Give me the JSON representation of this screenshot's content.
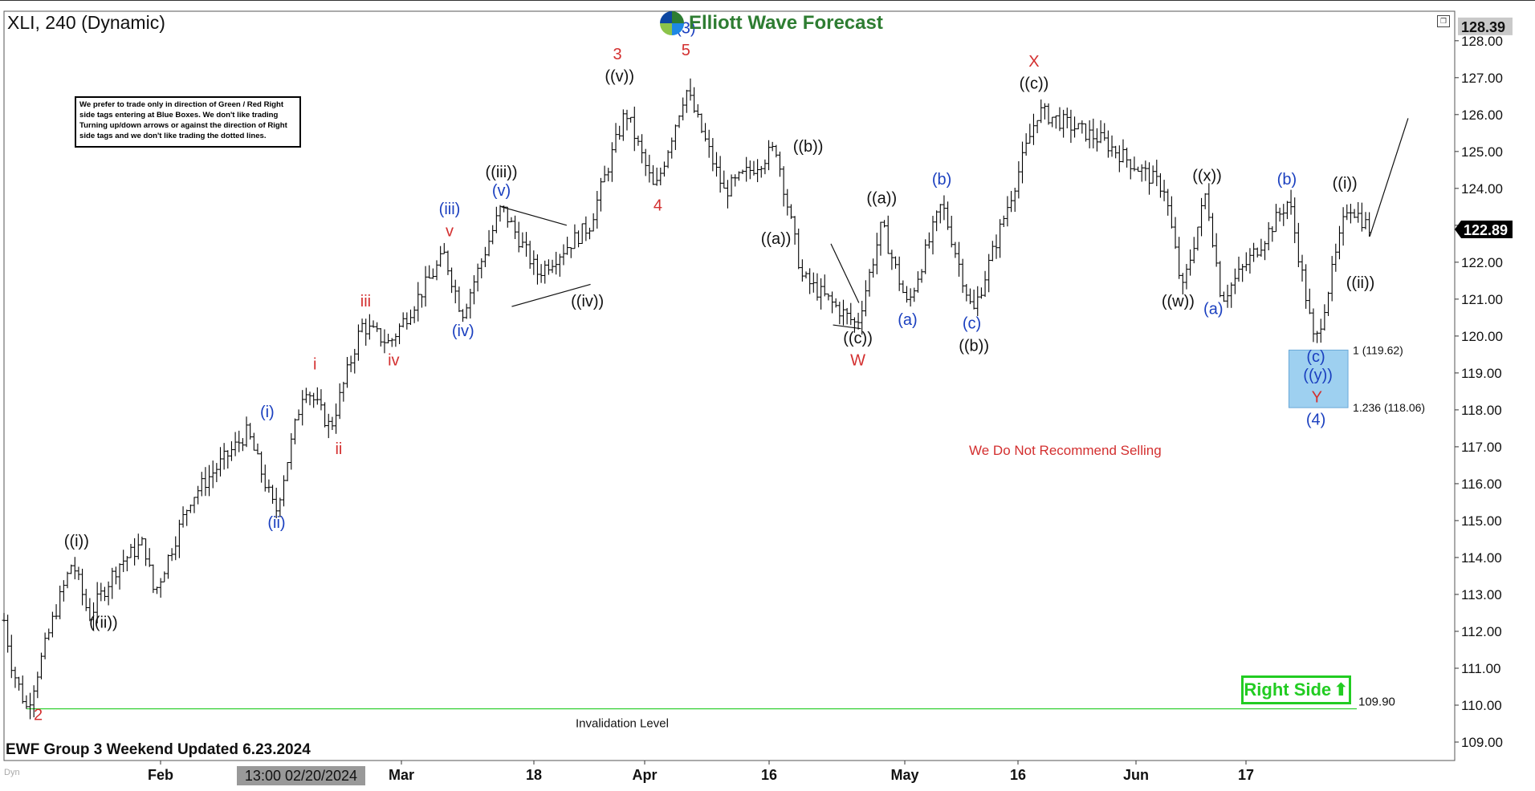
{
  "chart_data": {
    "type": "ohlc",
    "title": "XLI, 240 (Dynamic)",
    "x_axis": {
      "ticks": [
        "Feb",
        "Mar",
        "18",
        "Apr",
        "16",
        "May",
        "16",
        "Jun",
        "17"
      ],
      "cursor_label": "13:00 02/20/2024"
    },
    "y_axis": {
      "range": [
        108.5,
        128.8
      ],
      "ticks": [
        "128.00",
        "127.00",
        "126.00",
        "125.00",
        "124.00",
        "123.00",
        "122.00",
        "121.00",
        "120.00",
        "119.00",
        "118.00",
        "117.00",
        "116.00",
        "115.00",
        "114.00",
        "113.00",
        "112.00",
        "111.00",
        "110.00",
        "109.00"
      ],
      "high_label": "128.39",
      "last_label": "122.89"
    },
    "price_path": [
      {
        "t": 0,
        "p": 112.3
      },
      {
        "t": 8,
        "p": 111.0
      },
      {
        "t": 22,
        "p": 109.9
      },
      {
        "t": 48,
        "p": 112.4
      },
      {
        "t": 66,
        "p": 113.9
      },
      {
        "t": 82,
        "p": 112.4
      },
      {
        "t": 110,
        "p": 113.8
      },
      {
        "t": 135,
        "p": 114.4
      },
      {
        "t": 145,
        "p": 113.0
      },
      {
        "t": 180,
        "p": 115.6
      },
      {
        "t": 235,
        "p": 117.4
      },
      {
        "t": 262,
        "p": 115.2
      },
      {
        "t": 290,
        "p": 118.7
      },
      {
        "t": 315,
        "p": 117.5
      },
      {
        "t": 345,
        "p": 120.3
      },
      {
        "t": 372,
        "p": 119.8
      },
      {
        "t": 425,
        "p": 122.2
      },
      {
        "t": 442,
        "p": 120.6
      },
      {
        "t": 480,
        "p": 123.5
      },
      {
        "t": 515,
        "p": 121.7
      },
      {
        "t": 565,
        "p": 123.0
      },
      {
        "t": 600,
        "p": 126.1
      },
      {
        "t": 628,
        "p": 123.9
      },
      {
        "t": 658,
        "p": 126.7
      },
      {
        "t": 695,
        "p": 123.9
      },
      {
        "t": 745,
        "p": 125.1
      },
      {
        "t": 770,
        "p": 121.6
      },
      {
        "t": 823,
        "p": 120.3
      },
      {
        "t": 847,
        "p": 123.0
      },
      {
        "t": 872,
        "p": 120.8
      },
      {
        "t": 905,
        "p": 123.6
      },
      {
        "t": 935,
        "p": 120.6
      },
      {
        "t": 998,
        "p": 126.1
      },
      {
        "t": 1060,
        "p": 125.3
      },
      {
        "t": 1120,
        "p": 124.0
      },
      {
        "t": 1137,
        "p": 121.2
      },
      {
        "t": 1160,
        "p": 123.9
      },
      {
        "t": 1175,
        "p": 121.0
      },
      {
        "t": 1215,
        "p": 122.6
      },
      {
        "t": 1240,
        "p": 123.7
      },
      {
        "t": 1265,
        "p": 119.7
      },
      {
        "t": 1297,
        "p": 123.6
      },
      {
        "t": 1318,
        "p": 122.9
      }
    ],
    "levels": [
      {
        "label": "109.90",
        "value": 109.9,
        "color": "#22cc22",
        "text": "Invalidation Level"
      },
      {
        "label": "1 (119.62)",
        "value": 119.62
      },
      {
        "label": "1.236 (118.06)",
        "value": 118.06
      }
    ],
    "blue_box": {
      "from": 119.62,
      "to": 118.06,
      "color": "#9ed0f0"
    },
    "wave_labels": [
      {
        "text": "2",
        "t": 33,
        "p": 109.6,
        "color": "#d32f2f"
      },
      {
        "text": "((i))",
        "t": 70,
        "p": 114.3,
        "color": "#111111"
      },
      {
        "text": "((ii))",
        "t": 96,
        "p": 112.1,
        "color": "#111111"
      },
      {
        "text": "(i)",
        "t": 254,
        "p": 117.8,
        "color": "#1a3fbf"
      },
      {
        "text": "(ii)",
        "t": 263,
        "p": 114.8,
        "color": "#1a3fbf"
      },
      {
        "text": "i",
        "t": 300,
        "p": 119.1,
        "color": "#d32f2f"
      },
      {
        "text": "ii",
        "t": 323,
        "p": 116.8,
        "color": "#d32f2f"
      },
      {
        "text": "iii",
        "t": 349,
        "p": 120.8,
        "color": "#d32f2f"
      },
      {
        "text": "iv",
        "t": 376,
        "p": 119.2,
        "color": "#d32f2f"
      },
      {
        "text": "(iii)",
        "t": 430,
        "p": 123.3,
        "color": "#1a3fbf"
      },
      {
        "text": "v",
        "t": 430,
        "p": 122.7,
        "color": "#d32f2f"
      },
      {
        "text": "(iv)",
        "t": 443,
        "p": 120.0,
        "color": "#1a3fbf"
      },
      {
        "text": "((iii))",
        "t": 480,
        "p": 124.3,
        "color": "#111111"
      },
      {
        "text": "(v)",
        "t": 480,
        "p": 123.8,
        "color": "#1a3fbf"
      },
      {
        "text": "((iv))",
        "t": 563,
        "p": 120.8,
        "color": "#111111"
      },
      {
        "text": "3",
        "t": 592,
        "p": 127.5,
        "color": "#d32f2f"
      },
      {
        "text": "((v))",
        "t": 594,
        "p": 126.9,
        "color": "#111111"
      },
      {
        "text": "4",
        "t": 631,
        "p": 123.4,
        "color": "#d32f2f"
      },
      {
        "text": "(3)",
        "t": 658,
        "p": 128.2,
        "color": "#1a3fbf"
      },
      {
        "text": "5",
        "t": 658,
        "p": 127.6,
        "color": "#d32f2f"
      },
      {
        "text": "((b))",
        "t": 776,
        "p": 125.0,
        "color": "#111111"
      },
      {
        "text": "((a))",
        "t": 745,
        "p": 122.5,
        "color": "#111111"
      },
      {
        "text": "((c))",
        "t": 824,
        "p": 119.8,
        "color": "#111111"
      },
      {
        "text": "W",
        "t": 824,
        "p": 119.2,
        "color": "#d32f2f"
      },
      {
        "text": "((a))",
        "t": 847,
        "p": 123.6,
        "color": "#111111"
      },
      {
        "text": "(a)",
        "t": 872,
        "p": 120.3,
        "color": "#1a3fbf"
      },
      {
        "text": "(b)",
        "t": 905,
        "p": 124.1,
        "color": "#1a3fbf"
      },
      {
        "text": "(c)",
        "t": 934,
        "p": 120.2,
        "color": "#1a3fbf"
      },
      {
        "text": "((b))",
        "t": 936,
        "p": 119.6,
        "color": "#111111"
      },
      {
        "text": "X",
        "t": 994,
        "p": 127.3,
        "color": "#d32f2f"
      },
      {
        "text": "((c))",
        "t": 994,
        "p": 126.7,
        "color": "#111111"
      },
      {
        "text": "((x))",
        "t": 1161,
        "p": 124.2,
        "color": "#111111"
      },
      {
        "text": "((w))",
        "t": 1133,
        "p": 120.8,
        "color": "#111111"
      },
      {
        "text": "(a)",
        "t": 1167,
        "p": 120.6,
        "color": "#1a3fbf"
      },
      {
        "text": "(b)",
        "t": 1238,
        "p": 124.1,
        "color": "#1a3fbf"
      },
      {
        "text": "((i))",
        "t": 1294,
        "p": 124.0,
        "color": "#111111"
      },
      {
        "text": "((ii))",
        "t": 1309,
        "p": 121.3,
        "color": "#111111"
      },
      {
        "text": "(c)",
        "t": 1266,
        "p": 119.3,
        "color": "#1a3fbf"
      },
      {
        "text": "((y))",
        "t": 1268,
        "p": 118.8,
        "color": "#1a3fbf"
      },
      {
        "text": "Y",
        "t": 1267,
        "p": 118.2,
        "color": "#d32f2f"
      },
      {
        "text": "(4)",
        "t": 1266,
        "p": 117.6,
        "color": "#1a3fbf"
      }
    ],
    "patterns": [
      {
        "type": "triangle",
        "points": [
          [
            480,
            123.5
          ],
          [
            543,
            123.0
          ],
          [
            490,
            120.8
          ],
          [
            566,
            121.4
          ]
        ]
      },
      {
        "type": "wedge",
        "points": [
          [
            798,
            122.5
          ],
          [
            825,
            120.9
          ],
          [
            800,
            120.3
          ],
          [
            827,
            120.2
          ]
        ]
      }
    ],
    "projection": [
      [
        1318,
        122.7
      ],
      [
        1355,
        125.9
      ]
    ],
    "colors": {
      "primary": "#111111",
      "wave_red": "#d32f2f",
      "wave_blue": "#1a3fbf",
      "right_side": "#22cc22",
      "box": "#9ed0f0"
    }
  },
  "header": {
    "title": "XLI, 240 (Dynamic)",
    "brand": "Elliott Wave Forecast"
  },
  "note": "We prefer to trade only in direction of Green / Red Right side tags entering at Blue Boxes. We don't like trading Turning up/down arrows or against the direction of Right side tags and we don't like trading the dotted lines.",
  "annotations": {
    "recommend": "We Do Not Recommend Selling",
    "right_side": "Right Side",
    "right_side_icon": "arrow-up-icon",
    "invalidation": "Invalidation Level",
    "footer": "EWF Group 3 Weekend Updated 6.23.2024",
    "watermark": "Dyn"
  }
}
